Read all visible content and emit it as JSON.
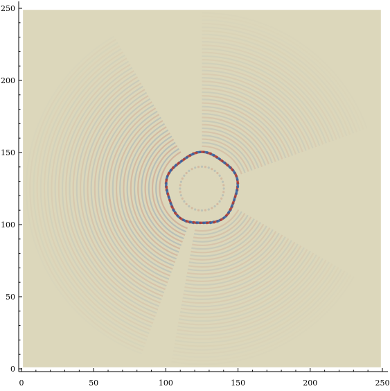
{
  "chart_data": {
    "type": "heatmap",
    "title": "",
    "xlabel": "",
    "ylabel": "",
    "xlim": [
      0,
      250
    ],
    "ylim": [
      0,
      250
    ],
    "data_extent": [
      1,
      249
    ],
    "x_ticks": [
      0,
      50,
      100,
      150,
      200,
      250
    ],
    "y_ticks": [
      0,
      50,
      100,
      150,
      200,
      250
    ],
    "x_tick_labels": [
      "0",
      "50",
      "100",
      "150",
      "200",
      "250"
    ],
    "y_tick_labels": [
      "0",
      "50",
      "100",
      "150",
      "200",
      "250"
    ],
    "minor_tick_step": 10,
    "grid": false,
    "legend": "none",
    "feature": {
      "shape": "ring",
      "center": [
        125,
        125
      ],
      "radius": 24.5
    },
    "colors": {
      "background": "#dcd7bb",
      "positive": "#b13a2f",
      "negative": "#2d63a8",
      "axis": "#000000",
      "frame": "#ffffff"
    }
  }
}
